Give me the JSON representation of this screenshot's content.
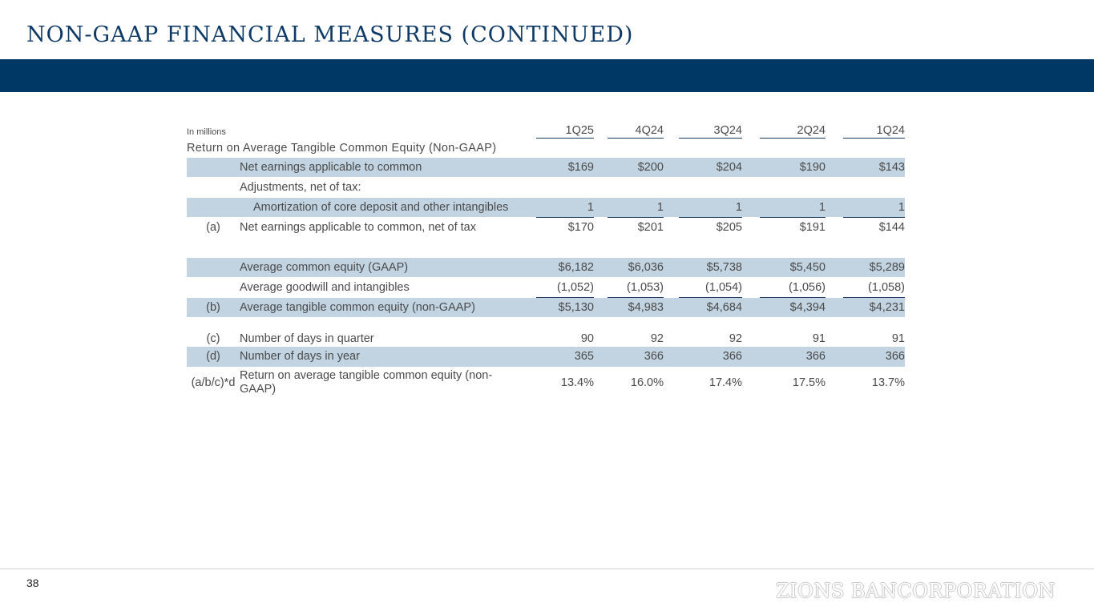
{
  "title": "NON-GAAP FINANCIAL MEASURES (CONTINUED)",
  "units_note": "In millions",
  "section_heading": "Return on Average Tangible Common Equity (Non-GAAP)",
  "columns": [
    "1Q25",
    "4Q24",
    "3Q24",
    "2Q24",
    "1Q24"
  ],
  "rows": [
    {
      "label": "",
      "desc": "Net earnings applicable to common",
      "values": [
        "$169",
        "$200",
        "$204",
        "$190",
        "$143"
      ]
    },
    {
      "label": "",
      "desc": "Adjustments, net of tax:",
      "values": [
        "",
        "",
        "",
        "",
        ""
      ]
    },
    {
      "label": "",
      "desc": "Amortization of core deposit and other intangibles",
      "values": [
        "1",
        "1",
        "1",
        "1",
        "1"
      ]
    },
    {
      "label": "(a)",
      "desc": "Net earnings applicable to common, net of tax",
      "values": [
        "$170",
        "$201",
        "$205",
        "$191",
        "$144"
      ]
    },
    {
      "label": "",
      "desc": "Average common equity (GAAP)",
      "values": [
        "$6,182",
        "$6,036",
        "$5,738",
        "$5,450",
        "$5,289"
      ]
    },
    {
      "label": "",
      "desc": "Average goodwill and intangibles",
      "values": [
        "(1,052)",
        "(1,053)",
        "(1,054)",
        "(1,056)",
        "(1,058)"
      ]
    },
    {
      "label": "(b)",
      "desc": "Average tangible common equity (non-GAAP)",
      "values": [
        "$5,130",
        "$4,983",
        "$4,684",
        "$4,394",
        "$4,231"
      ]
    },
    {
      "label": "(c)",
      "desc": "Number of days in quarter",
      "values": [
        "90",
        "92",
        "92",
        "91",
        "91"
      ]
    },
    {
      "label": "(d)",
      "desc": "Number of days in year",
      "values": [
        "365",
        "366",
        "366",
        "366",
        "366"
      ]
    },
    {
      "label": "(a/b/c)*d",
      "desc": "Return on average tangible common equity (non-GAAP)",
      "values": [
        "13.4%",
        "16.0%",
        "17.4%",
        "17.5%",
        "13.7%"
      ]
    }
  ],
  "page_number": "38",
  "logo_text": "ZIONS BANCORPORATION",
  "colors": {
    "title": "#0f3a66",
    "band": "#003865",
    "row_shade": "#c2d4e2"
  }
}
